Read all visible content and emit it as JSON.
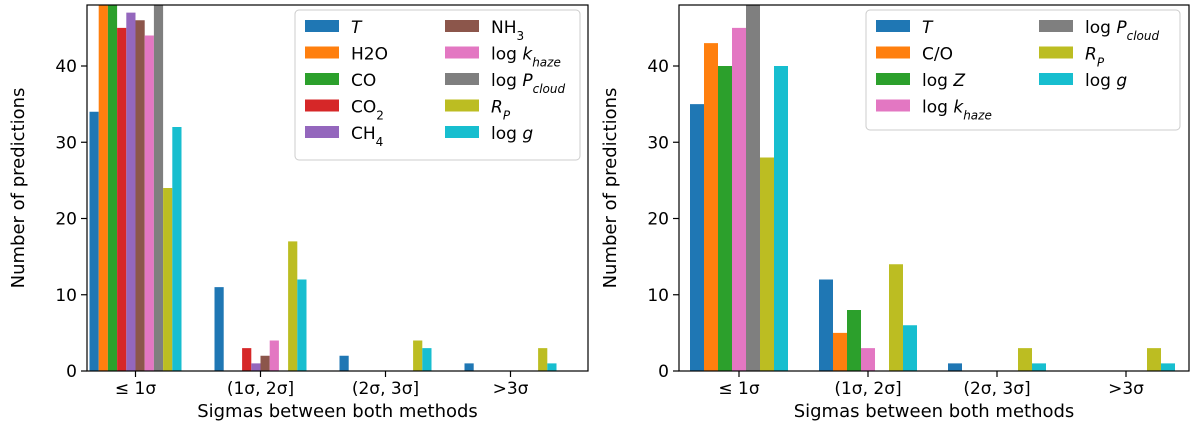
{
  "chart_data": [
    {
      "type": "bar",
      "xlabel": "Sigmas between both methods",
      "ylabel": "Number of predictions",
      "ylim": [
        0,
        48
      ],
      "yticks": [
        0,
        10,
        20,
        30,
        40
      ],
      "categories": [
        "≤ 1σ",
        "(1σ, 2σ]",
        "(2σ, 3σ]",
        ">3σ"
      ],
      "legend_position": "top-right",
      "legend_columns": 2,
      "series": [
        {
          "name": "T",
          "color": "#1f77b4",
          "values": [
            34,
            11,
            2,
            1
          ]
        },
        {
          "name": "H2O",
          "color": "#ff7f0e",
          "values": [
            48,
            0,
            0,
            0
          ]
        },
        {
          "name": "CO",
          "color": "#2ca02c",
          "values": [
            48,
            0,
            0,
            0
          ]
        },
        {
          "name": "CO2",
          "color": "#d62728",
          "values": [
            45,
            3,
            0,
            0
          ]
        },
        {
          "name": "CH4",
          "color": "#9467bd",
          "values": [
            47,
            1,
            0,
            0
          ]
        },
        {
          "name": "NH3",
          "color": "#8c564b",
          "values": [
            46,
            2,
            0,
            0
          ]
        },
        {
          "name": "log k_haze",
          "color": "#e377c2",
          "values": [
            44,
            4,
            0,
            0
          ]
        },
        {
          "name": "log P_cloud",
          "color": "#7f7f7f",
          "values": [
            48,
            0,
            0,
            0
          ]
        },
        {
          "name": "R_P",
          "color": "#bcbd22",
          "values": [
            24,
            17,
            4,
            3
          ]
        },
        {
          "name": "log g",
          "color": "#17becf",
          "values": [
            32,
            12,
            3,
            1
          ]
        }
      ]
    },
    {
      "type": "bar",
      "xlabel": "Sigmas between both methods",
      "ylabel": "Number of predictions",
      "ylim": [
        0,
        48
      ],
      "yticks": [
        0,
        10,
        20,
        30,
        40
      ],
      "categories": [
        "≤ 1σ",
        "(1σ, 2σ]",
        "(2σ, 3σ]",
        ">3σ"
      ],
      "legend_position": "top-right",
      "legend_columns": 2,
      "series": [
        {
          "name": "T",
          "color": "#1f77b4",
          "values": [
            35,
            12,
            1,
            0
          ]
        },
        {
          "name": "C/O",
          "color": "#ff7f0e",
          "values": [
            43,
            5,
            0,
            0
          ]
        },
        {
          "name": "log Z",
          "color": "#2ca02c",
          "values": [
            40,
            8,
            0,
            0
          ]
        },
        {
          "name": "log k_haze",
          "color": "#e377c2",
          "values": [
            45,
            3,
            0,
            0
          ]
        },
        {
          "name": "log P_cloud",
          "color": "#7f7f7f",
          "values": [
            48,
            0,
            0,
            0
          ]
        },
        {
          "name": "R_P",
          "color": "#bcbd22",
          "values": [
            28,
            14,
            3,
            3
          ]
        },
        {
          "name": "log g",
          "color": "#17becf",
          "values": [
            40,
            6,
            1,
            1
          ]
        }
      ]
    }
  ]
}
